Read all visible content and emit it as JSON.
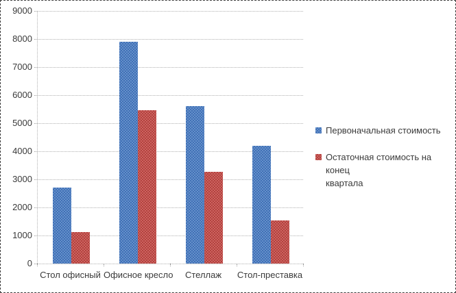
{
  "chart": {
    "background": "#ffffff",
    "border_color": "#3c3c3c",
    "gridline_color": "#b0b0b0",
    "text_color": "#3a3a3a"
  },
  "chart_data": {
    "type": "bar",
    "title": "",
    "xlabel": "",
    "ylabel": "",
    "categories": [
      "Стол офисный",
      "Офисное кресло",
      "Стеллаж",
      "Стол-преставка"
    ],
    "series": [
      {
        "name": "Первоначальная стоимость",
        "name_lines": [
          "Первоначальная стоимость"
        ],
        "color": "#4F81BD",
        "color_dark": "#4070b6",
        "color_light": "#6590ca",
        "values": [
          2700,
          7900,
          5600,
          4200
        ]
      },
      {
        "name": "Остаточная стоимость на конец квартала",
        "name_lines": [
          "Остаточная стоимость на конец",
          "квартала"
        ],
        "color": "#C0504D",
        "color_dark": "#b2423e",
        "color_light": "#cd6360",
        "values": [
          1120,
          5470,
          3270,
          1530
        ]
      }
    ],
    "ylim": [
      0,
      9000
    ],
    "yticks": [
      0,
      1000,
      2000,
      3000,
      4000,
      5000,
      6000,
      7000,
      8000,
      9000
    ],
    "ytick_step": 1000,
    "grid": true,
    "legend_position": "right"
  }
}
